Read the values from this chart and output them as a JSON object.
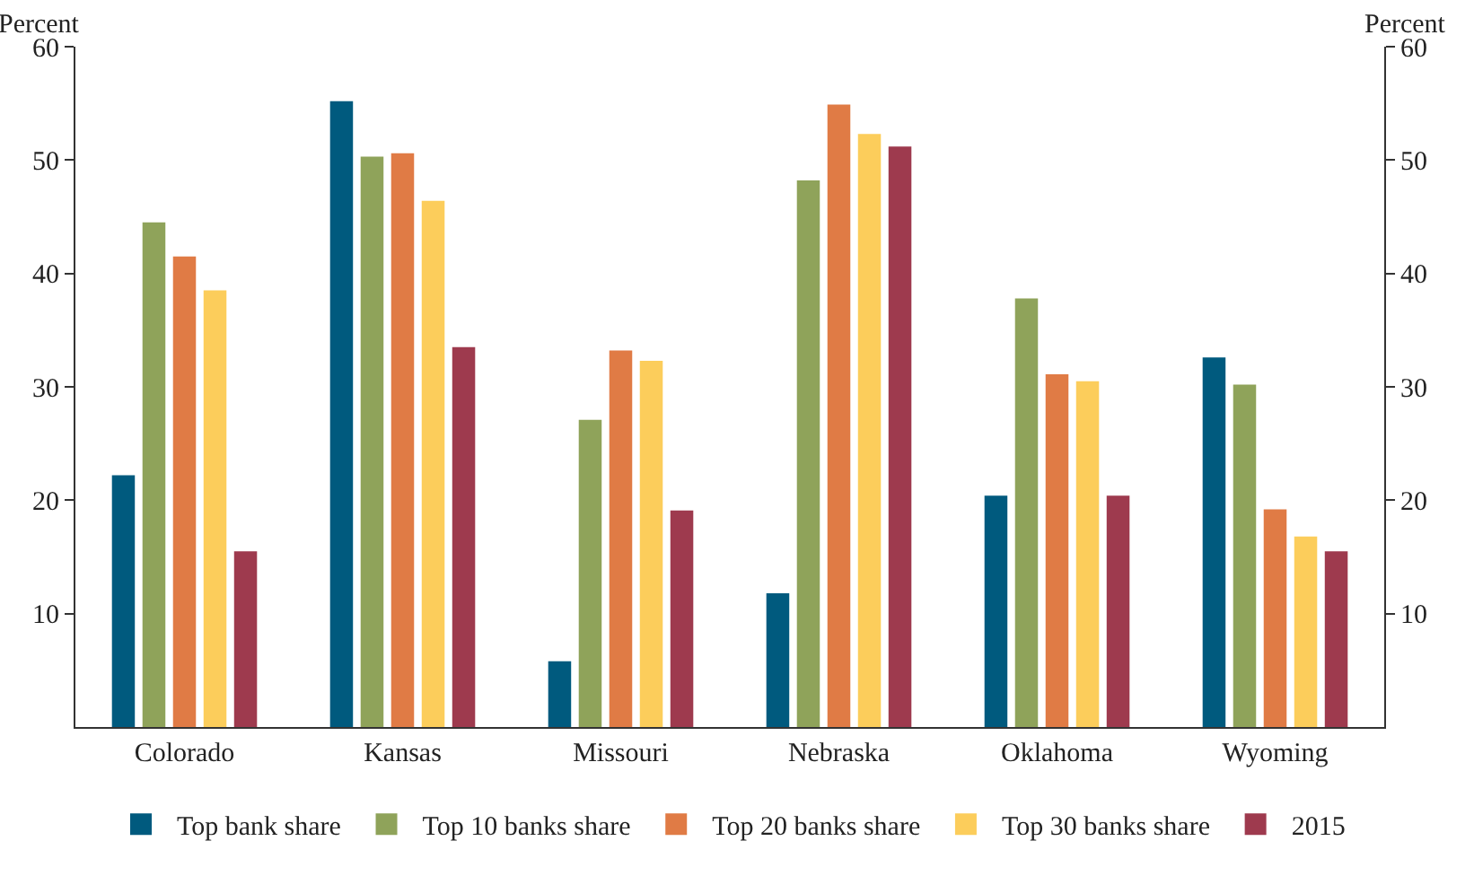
{
  "chart_data": {
    "type": "bar",
    "ylabel": "Percent",
    "y2label": "Percent",
    "categories": [
      "Colorado",
      "Kansas",
      "Missouri",
      "Nebraska",
      "Oklahoma",
      "Wyoming"
    ],
    "series": [
      {
        "name": "Top bank share",
        "color": "#005a7e",
        "values": [
          22.2,
          55.2,
          5.8,
          11.8,
          20.4,
          32.6
        ]
      },
      {
        "name": "Top 10 banks share",
        "color": "#8fa35a",
        "values": [
          44.5,
          50.3,
          27.1,
          48.2,
          37.8,
          30.2
        ]
      },
      {
        "name": "Top 20 banks share",
        "color": "#e07b45",
        "values": [
          41.5,
          50.6,
          33.2,
          54.9,
          31.1,
          19.2
        ]
      },
      {
        "name": "Top 30 banks share",
        "color": "#fccd5b",
        "values": [
          38.5,
          46.4,
          32.3,
          52.3,
          30.5,
          16.8
        ]
      },
      {
        "name": "2015",
        "color": "#9e3a4e",
        "values": [
          15.5,
          33.5,
          19.1,
          51.2,
          20.4,
          15.5
        ]
      }
    ],
    "ylim": [
      0,
      60
    ],
    "yticks": [
      10,
      20,
      30,
      40,
      50,
      60
    ],
    "y2lim": [
      0,
      60
    ],
    "y2ticks": [
      10,
      20,
      30,
      40,
      50,
      60
    ],
    "grid": false,
    "legend": "bottom"
  }
}
